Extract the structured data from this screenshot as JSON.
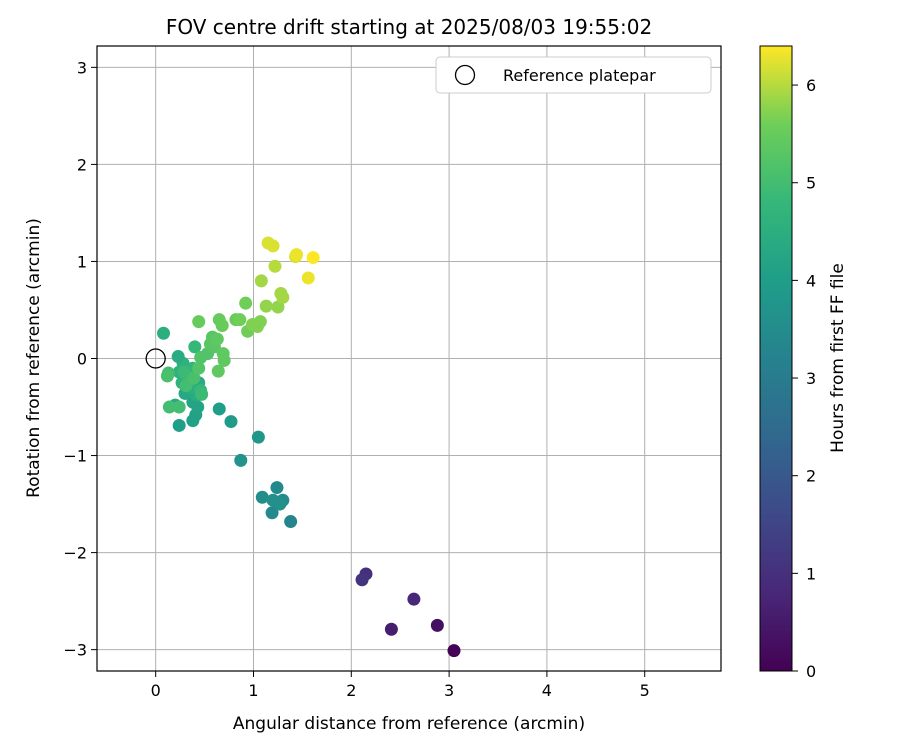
{
  "chart_data": {
    "type": "scatter",
    "title": "FOV centre drift starting at 2025/08/03 19:55:02",
    "xlabel": "Angular distance from reference (arcmin)",
    "ylabel": "Rotation from reference (arcmin)",
    "xlim": [
      -0.6,
      5.78
    ],
    "ylim": [
      -3.22,
      3.22
    ],
    "xticks": [
      0,
      1,
      2,
      3,
      4,
      5
    ],
    "yticks": [
      -3,
      -2,
      -1,
      0,
      1,
      2,
      3
    ],
    "xtick_labels": [
      "0",
      "1",
      "2",
      "3",
      "4",
      "5"
    ],
    "ytick_labels": [
      "−3",
      "−2",
      "−1",
      "0",
      "1",
      "2",
      "3"
    ],
    "grid": true,
    "legend": {
      "position": "top-right",
      "entries": [
        "Reference platepar"
      ]
    },
    "reference_point": {
      "x": 0,
      "y": 0
    },
    "colorbar": {
      "label": "Hours from first FF file",
      "colormap": "viridis",
      "range": [
        0,
        6.4
      ],
      "ticks": [
        0,
        1,
        2,
        3,
        4,
        5,
        6
      ],
      "tick_labels": [
        "0",
        "1",
        "2",
        "3",
        "4",
        "5",
        "6"
      ]
    },
    "points": [
      {
        "x": 3.05,
        "y": -3.01,
        "h": 0.05
      },
      {
        "x": 2.88,
        "y": -2.75,
        "h": 0.3
      },
      {
        "x": 2.41,
        "y": -2.79,
        "h": 0.6
      },
      {
        "x": 2.64,
        "y": -2.48,
        "h": 0.8
      },
      {
        "x": 2.15,
        "y": -2.22,
        "h": 1.0
      },
      {
        "x": 2.11,
        "y": -2.28,
        "h": 1.1
      },
      {
        "x": 1.38,
        "y": -1.68,
        "h": 3.3
      },
      {
        "x": 1.19,
        "y": -1.59,
        "h": 3.4
      },
      {
        "x": 1.24,
        "y": -1.33,
        "h": 3.4
      },
      {
        "x": 1.3,
        "y": -1.46,
        "h": 3.5
      },
      {
        "x": 1.09,
        "y": -1.43,
        "h": 3.5
      },
      {
        "x": 1.2,
        "y": -1.46,
        "h": 3.6
      },
      {
        "x": 1.27,
        "y": -1.5,
        "h": 3.6
      },
      {
        "x": 0.87,
        "y": -1.05,
        "h": 3.7
      },
      {
        "x": 1.05,
        "y": -0.81,
        "h": 3.8
      },
      {
        "x": 0.77,
        "y": -0.65,
        "h": 3.9
      },
      {
        "x": 0.65,
        "y": -0.52,
        "h": 4.0
      },
      {
        "x": 0.24,
        "y": -0.69,
        "h": 4.0
      },
      {
        "x": 0.38,
        "y": -0.64,
        "h": 4.1
      },
      {
        "x": 0.41,
        "y": -0.58,
        "h": 4.1
      },
      {
        "x": 0.43,
        "y": -0.5,
        "h": 4.2
      },
      {
        "x": 0.38,
        "y": -0.45,
        "h": 4.2
      },
      {
        "x": 0.2,
        "y": -0.48,
        "h": 4.3
      },
      {
        "x": 0.3,
        "y": -0.36,
        "h": 4.3
      },
      {
        "x": 0.42,
        "y": -0.38,
        "h": 4.4
      },
      {
        "x": 0.44,
        "y": -0.25,
        "h": 4.4
      },
      {
        "x": 0.36,
        "y": -0.3,
        "h": 4.5
      },
      {
        "x": 0.33,
        "y": -0.2,
        "h": 4.5
      },
      {
        "x": 0.27,
        "y": -0.25,
        "h": 4.6
      },
      {
        "x": 0.24,
        "y": -0.14,
        "h": 4.6
      },
      {
        "x": 0.28,
        "y": -0.05,
        "h": 4.6
      },
      {
        "x": 0.38,
        "y": -0.1,
        "h": 4.7
      },
      {
        "x": 0.23,
        "y": 0.02,
        "h": 4.4
      },
      {
        "x": 0.08,
        "y": 0.26,
        "h": 4.5
      },
      {
        "x": 0.4,
        "y": 0.12,
        "h": 4.8
      },
      {
        "x": 0.46,
        "y": -0.33,
        "h": 4.8
      },
      {
        "x": 0.47,
        "y": -0.37,
        "h": 4.9
      },
      {
        "x": 0.29,
        "y": -0.14,
        "h": 4.9
      },
      {
        "x": 0.35,
        "y": -0.22,
        "h": 4.9
      },
      {
        "x": 0.31,
        "y": -0.28,
        "h": 5.0
      },
      {
        "x": 0.14,
        "y": -0.5,
        "h": 5.0
      },
      {
        "x": 0.24,
        "y": -0.5,
        "h": 5.0
      },
      {
        "x": 0.13,
        "y": -0.15,
        "h": 5.0
      },
      {
        "x": 0.12,
        "y": -0.18,
        "h": 5.1
      },
      {
        "x": 0.39,
        "y": -0.2,
        "h": 5.1
      },
      {
        "x": 0.44,
        "y": -0.1,
        "h": 5.2
      },
      {
        "x": 0.46,
        "y": 0.01,
        "h": 5.2
      },
      {
        "x": 0.53,
        "y": 0.05,
        "h": 5.2
      },
      {
        "x": 0.56,
        "y": 0.15,
        "h": 5.3
      },
      {
        "x": 0.58,
        "y": 0.22,
        "h": 5.3
      },
      {
        "x": 0.6,
        "y": 0.12,
        "h": 5.3
      },
      {
        "x": 0.63,
        "y": 0.2,
        "h": 5.4
      },
      {
        "x": 0.69,
        "y": 0.05,
        "h": 5.4
      },
      {
        "x": 0.7,
        "y": -0.02,
        "h": 5.4
      },
      {
        "x": 0.64,
        "y": -0.13,
        "h": 5.4
      },
      {
        "x": 0.65,
        "y": 0.4,
        "h": 5.5
      },
      {
        "x": 0.68,
        "y": 0.34,
        "h": 5.5
      },
      {
        "x": 0.44,
        "y": 0.38,
        "h": 5.5
      },
      {
        "x": 0.82,
        "y": 0.4,
        "h": 5.5
      },
      {
        "x": 0.86,
        "y": 0.4,
        "h": 5.6
      },
      {
        "x": 0.94,
        "y": 0.28,
        "h": 5.6
      },
      {
        "x": 0.92,
        "y": 0.57,
        "h": 5.6
      },
      {
        "x": 0.99,
        "y": 0.35,
        "h": 5.7
      },
      {
        "x": 1.04,
        "y": 0.33,
        "h": 5.7
      },
      {
        "x": 1.07,
        "y": 0.38,
        "h": 5.7
      },
      {
        "x": 1.13,
        "y": 0.54,
        "h": 5.8
      },
      {
        "x": 1.08,
        "y": 0.8,
        "h": 5.9
      },
      {
        "x": 1.25,
        "y": 0.53,
        "h": 5.8
      },
      {
        "x": 1.28,
        "y": 0.67,
        "h": 5.9
      },
      {
        "x": 1.3,
        "y": 0.63,
        "h": 5.9
      },
      {
        "x": 1.22,
        "y": 0.95,
        "h": 6.0
      },
      {
        "x": 1.15,
        "y": 1.19,
        "h": 6.2
      },
      {
        "x": 1.2,
        "y": 1.16,
        "h": 6.2
      },
      {
        "x": 1.43,
        "y": 1.05,
        "h": 6.2
      },
      {
        "x": 1.44,
        "y": 1.07,
        "h": 6.3
      },
      {
        "x": 1.56,
        "y": 0.83,
        "h": 6.3
      },
      {
        "x": 1.61,
        "y": 1.04,
        "h": 6.4
      }
    ]
  }
}
